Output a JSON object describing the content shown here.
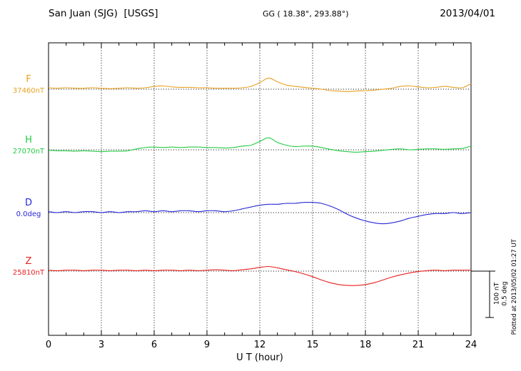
{
  "header": {
    "station_title": "San Juan (SJG)  [USGS]",
    "gg_label": "GG ( 18.38°, 293.88°)",
    "date": "2013/04/01"
  },
  "axis": {
    "xlabel": "U T (hour)"
  },
  "side": {
    "plotted_at": "Plotted at 2013/05/02 01:27 UT",
    "scale_bar": {
      "nt": "100 nT",
      "deg": "0.5 deg"
    }
  },
  "chart_data": {
    "type": "line",
    "title": "San Juan (SJG) [USGS] magnetogram 2013/04/01",
    "xlabel": "U T (hour)",
    "x_range": [
      0,
      24
    ],
    "x_ticks": [
      0,
      3,
      6,
      9,
      12,
      15,
      18,
      21,
      24
    ],
    "x_minor_step_hours": 1,
    "grid": {
      "vertical_dotted_every_hours": 3,
      "dotted_baseline_per_series": true
    },
    "legend_position": "left",
    "scale_bar": {
      "nT": 100,
      "deg": 0.5
    },
    "sample_step_hours": 0.5,
    "series": [
      {
        "name": "F",
        "unit": "nT",
        "baseline_value": 37460,
        "baseline_label": "37460nT",
        "color": "#e8a020",
        "deviations": [
          3,
          2,
          3,
          2,
          2,
          3,
          2,
          1,
          2,
          3,
          2,
          3,
          6,
          7,
          5,
          4,
          4,
          3,
          3,
          2,
          2,
          2,
          3,
          6,
          14,
          24,
          16,
          9,
          6,
          4,
          2,
          0,
          -3,
          -4,
          -5,
          -4,
          -3,
          -2,
          0,
          2,
          6,
          7,
          5,
          3,
          4,
          6,
          4,
          3,
          12
        ]
      },
      {
        "name": "H",
        "unit": "nT",
        "baseline_value": 27070,
        "baseline_label": "27070nT",
        "color": "#22cc44",
        "deviations": [
          -1,
          -2,
          -2,
          -3,
          -2,
          -3,
          -4,
          -3,
          -3,
          -2,
          2,
          5,
          6,
          5,
          6,
          5,
          6,
          6,
          5,
          5,
          4,
          5,
          8,
          10,
          18,
          26,
          16,
          10,
          7,
          8,
          8,
          5,
          1,
          -2,
          -4,
          -5,
          -4,
          -3,
          -1,
          1,
          2,
          0,
          1,
          2,
          2,
          1,
          2,
          3,
          8
        ]
      },
      {
        "name": "D",
        "unit": "deg",
        "baseline_value": 0.0,
        "baseline_label": "0.0deg",
        "color": "#2626d8",
        "deviations": [
          0.01,
          0,
          0.01,
          0,
          0.01,
          0.01,
          0,
          0.01,
          0,
          0.01,
          0.01,
          0.02,
          0.01,
          0.02,
          0.01,
          0.02,
          0.02,
          0.01,
          0.02,
          0.02,
          0.01,
          0.02,
          0.04,
          0.06,
          0.08,
          0.09,
          0.09,
          0.1,
          0.1,
          0.11,
          0.11,
          0.1,
          0.07,
          0.03,
          -0.02,
          -0.06,
          -0.09,
          -0.11,
          -0.12,
          -0.11,
          -0.09,
          -0.06,
          -0.04,
          -0.02,
          -0.01,
          -0.01,
          0,
          -0.01,
          0
        ]
      },
      {
        "name": "Z",
        "unit": "nT",
        "baseline_value": 25810,
        "baseline_label": "25810nT",
        "color": "#e82020",
        "deviations": [
          2,
          1,
          2,
          2,
          1,
          2,
          2,
          1,
          2,
          2,
          1,
          2,
          1,
          2,
          2,
          1,
          2,
          1,
          2,
          3,
          2,
          1,
          3,
          5,
          8,
          10,
          7,
          3,
          -1,
          -6,
          -12,
          -19,
          -25,
          -29,
          -31,
          -31,
          -29,
          -25,
          -19,
          -13,
          -8,
          -4,
          -1,
          1,
          2,
          1,
          2,
          2,
          2
        ]
      }
    ]
  }
}
